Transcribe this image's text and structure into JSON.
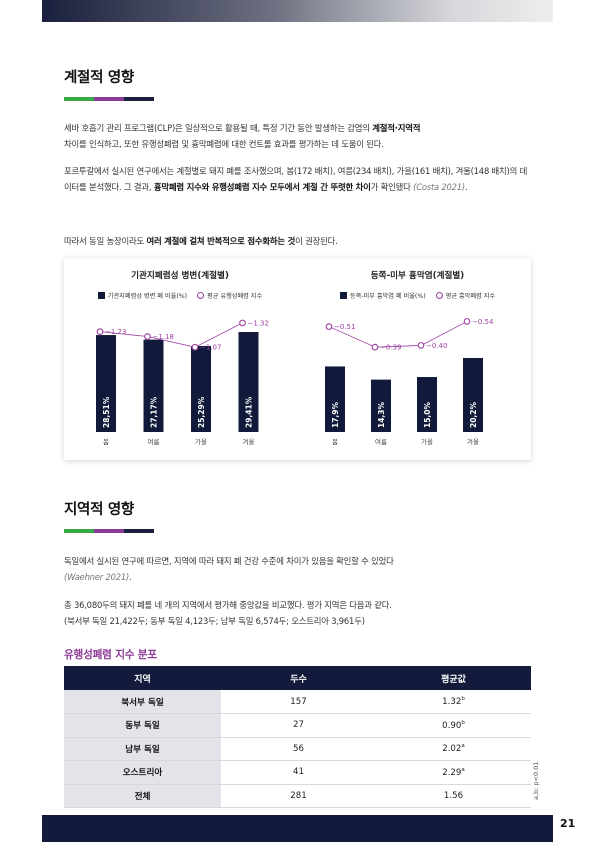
{
  "section1": {
    "title": "계절적 영향",
    "p1_a": "세바 호흡기 관리 프로그램(CLP)은 일상적으로 활용될 때, 특정 기간 동안 발생하는 감염의 ",
    "p1_b": "계절적·지역적",
    "p1_c": "차이를 인식하고, 또한 유행성폐렴 및 흉막폐렴에 대한 컨트롤 효과를 평가하는 데 도움이 된다.",
    "p2_a": "포르투갈에서 실시된 연구에서는 계절별로 돼지 폐를 조사했으며, 봄(172 배치), 여름(234 배치), 가을(161 배치), 겨울(148 배치)의 데이터를 분석했다. 그 결과, ",
    "p2_b": "흉막폐렴 지수와 유행성폐렴 지수 모두에서 계절 간 뚜렷한 차이",
    "p2_c": "가 확인됐다 ",
    "p2_cite": "(Costa 2021)",
    "p2_end": ".",
    "p3_a": "따라서 동일 농장이라도 ",
    "p3_b": "여러 계절에 걸쳐 반복적으로 점수화하는 것",
    "p3_c": "이 권장된다."
  },
  "chart_data": [
    {
      "type": "bar",
      "title": "기관지폐렴성 병변(계절별)",
      "categories": [
        "봄",
        "여름",
        "가을",
        "겨울"
      ],
      "series": [
        {
          "name": "기관지폐렴성 병변 폐 비율(%)",
          "values": [
            28.51,
            27.17,
            25.29,
            29.41
          ],
          "labels": [
            "28,51%",
            "27,17%",
            "25,29%",
            "29,41%"
          ]
        },
        {
          "name": "평균 유행성폐렴 지수",
          "values": [
            1.23,
            1.18,
            1.07,
            1.32
          ],
          "labels": [
            "1.23",
            "1.18",
            "1.07",
            "1.32"
          ]
        }
      ],
      "bar_color": "#111a3a",
      "marker_color": "#9b3ea1"
    },
    {
      "type": "bar",
      "title": "등쪽-미부 흉막염(계절별)",
      "categories": [
        "봄",
        "여름",
        "가을",
        "겨울"
      ],
      "series": [
        {
          "name": "등쪽-미부 흉막염 폐 비율(%)",
          "values": [
            17.9,
            14.3,
            15.0,
            20.2
          ],
          "labels": [
            "17,9%",
            "14,3%",
            "15,0%",
            "20,2%"
          ]
        },
        {
          "name": "평균 흉막폐렴 지수",
          "values": [
            0.51,
            0.39,
            0.4,
            0.54
          ],
          "labels": [
            "0.51",
            "0.39",
            "0.40",
            "0.54"
          ]
        }
      ],
      "bar_color": "#111a3a",
      "marker_color": "#9b3ea1"
    }
  ],
  "section2": {
    "title": "지역적 영향",
    "p1_a": "독일에서 실시된 연구에 따르면, 지역에 따라 돼지 폐 건강 수준에 차이가 있음을 확인할 수 있었다",
    "p1_cite": "(Waehner 2021)",
    "p1_end": ".",
    "p2_line1": "총 36,080두의 돼지 폐를 네 개의 지역에서 평가해 중앙값을 비교했다. 평가 지역은 다음과 같다.",
    "p2_line2": "(북서부 독일 21,422두; 동부 독일 4,123두; 남부 독일 6,574두; 오스트리아 3,961두)"
  },
  "table": {
    "title": "유행성폐렴 지수 분포",
    "headers": [
      "지역",
      "두수",
      "평균값"
    ],
    "rows": [
      {
        "region": "북서부 독일",
        "count": "157",
        "mean": "1.32",
        "sup": "b"
      },
      {
        "region": "동부 독일",
        "count": "27",
        "mean": "0.90",
        "sup": "b"
      },
      {
        "region": "남부 독일",
        "count": "56",
        "mean": "2.02",
        "sup": "a"
      },
      {
        "region": "오스트리아",
        "count": "41",
        "mean": "2.29",
        "sup": "a"
      },
      {
        "region": "전체",
        "count": "281",
        "mean": "1.56",
        "sup": ""
      }
    ],
    "footnote": "a,b; p<0.01"
  },
  "page_number": "21"
}
